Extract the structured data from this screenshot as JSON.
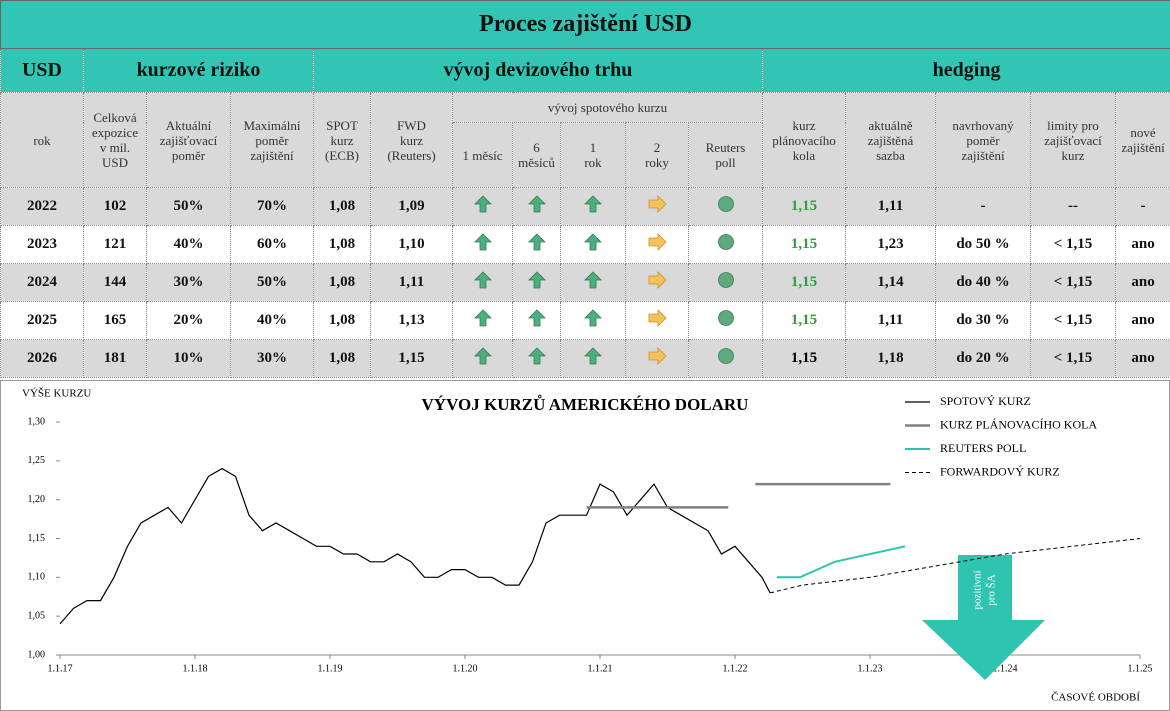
{
  "table": {
    "title": "Proces zajištění USD",
    "groups": [
      "USD",
      "kurzové riziko",
      "vývoj devizového trhu",
      "hedging"
    ],
    "spot_group": "vývoj spotového kurzu",
    "columns": [
      "rok",
      "Celková\nexpozice\nv mil.\nUSD",
      "Aktuální\nzajišťovací\npoměr",
      "Maximální\npoměr\nzajištění",
      "SPOT\nkurz\n(ECB)",
      "FWD\nkurz\n(Reuters)",
      "1 měsíc",
      "6\nměsíců",
      "1\nrok",
      "2\nroky",
      "Reuters\npoll",
      "kurz\nplánovacího\nkola",
      "aktuálně\nzajištěná\nsazba",
      "navrhovaný\npoměr\nzajištění",
      "limity pro\nzajišťovací\nkurz",
      "nové\nzajištění"
    ],
    "rows": [
      {
        "cells": [
          "2022",
          "102",
          "50%",
          "70%",
          "1,08",
          "1,09",
          "1,15",
          "1,11",
          "-",
          "--",
          "-"
        ],
        "plan_color": "#2e9e3c"
      },
      {
        "cells": [
          "2023",
          "121",
          "40%",
          "60%",
          "1,08",
          "1,10",
          "1,15",
          "1,23",
          "do 50 %",
          "< 1,15",
          "ano"
        ],
        "plan_color": "#2e9e3c"
      },
      {
        "cells": [
          "2024",
          "144",
          "30%",
          "50%",
          "1,08",
          "1,11",
          "1,15",
          "1,14",
          "do 40 %",
          "< 1,15",
          "ano"
        ],
        "plan_color": "#2e9e3c"
      },
      {
        "cells": [
          "2025",
          "165",
          "20%",
          "40%",
          "1,08",
          "1,13",
          "1,15",
          "1,11",
          "do 30 %",
          "< 1,15",
          "ano"
        ],
        "plan_color": "#2e9e3c"
      },
      {
        "cells": [
          "2026",
          "181",
          "10%",
          "30%",
          "1,08",
          "1,15",
          "1,15",
          "1,18",
          "do 20 %",
          "< 1,15",
          "ano"
        ],
        "plan_color": "#000000"
      }
    ]
  },
  "chart_data": {
    "type": "line",
    "title": "VÝVOJ KURZŮ AMERICKÉHO DOLARU",
    "y_label": "VÝŠE KURZU",
    "x_label": "ČASOVÉ OBDOBÍ",
    "xlim": [
      2017,
      2025
    ],
    "xticks": [
      {
        "value": 2017,
        "label": "1.1.17"
      },
      {
        "value": 2018,
        "label": "1.1.18"
      },
      {
        "value": 2019,
        "label": "1.1.19"
      },
      {
        "value": 2020,
        "label": "1.1.20"
      },
      {
        "value": 2021,
        "label": "1.1.21"
      },
      {
        "value": 2022,
        "label": "1.1.22"
      },
      {
        "value": 2023,
        "label": "1.1.23"
      },
      {
        "value": 2024,
        "label": "1.1.24"
      },
      {
        "value": 2025,
        "label": "1.1.25"
      }
    ],
    "ylim": [
      1.0,
      1.3
    ],
    "yticks": [
      {
        "value": 1.0,
        "label": "1,00"
      },
      {
        "value": 1.05,
        "label": "1,05"
      },
      {
        "value": 1.1,
        "label": "1,10"
      },
      {
        "value": 1.15,
        "label": "1,15"
      },
      {
        "value": 1.2,
        "label": "1,20"
      },
      {
        "value": 1.25,
        "label": "1,25"
      },
      {
        "value": 1.3,
        "label": "1,30"
      }
    ],
    "series": [
      {
        "name": "SPOTOVÝ KURZ",
        "color": "#000000",
        "width": 1.2,
        "dashed": false,
        "x": [
          2017.0,
          2017.1,
          2017.2,
          2017.3,
          2017.4,
          2017.5,
          2017.6,
          2017.7,
          2017.8,
          2017.9,
          2018.0,
          2018.1,
          2018.2,
          2018.3,
          2018.4,
          2018.5,
          2018.6,
          2018.7,
          2018.8,
          2018.9,
          2019.0,
          2019.1,
          2019.2,
          2019.3,
          2019.4,
          2019.5,
          2019.6,
          2019.7,
          2019.8,
          2019.9,
          2020.0,
          2020.1,
          2020.2,
          2020.3,
          2020.4,
          2020.5,
          2020.6,
          2020.7,
          2020.8,
          2020.9,
          2021.0,
          2021.1,
          2021.2,
          2021.3,
          2021.4,
          2021.5,
          2021.6,
          2021.7,
          2021.8,
          2021.9,
          2022.0,
          2022.1,
          2022.2,
          2022.26
        ],
        "values": [
          1.04,
          1.06,
          1.07,
          1.07,
          1.1,
          1.14,
          1.17,
          1.18,
          1.19,
          1.17,
          1.2,
          1.23,
          1.24,
          1.23,
          1.18,
          1.16,
          1.17,
          1.16,
          1.15,
          1.14,
          1.14,
          1.13,
          1.13,
          1.12,
          1.12,
          1.13,
          1.12,
          1.1,
          1.1,
          1.11,
          1.11,
          1.1,
          1.1,
          1.09,
          1.09,
          1.12,
          1.17,
          1.18,
          1.18,
          1.18,
          1.22,
          1.21,
          1.18,
          1.2,
          1.22,
          1.19,
          1.18,
          1.17,
          1.16,
          1.13,
          1.14,
          1.12,
          1.1,
          1.08
        ]
      },
      {
        "name": "KURZ PLÁNOVACÍHO KOLA",
        "color": "#808080",
        "width": 2.5,
        "dashed": false,
        "x": [
          2020.9,
          2021.95,
          2022.0,
          2022.15,
          2023.15
        ],
        "values": [
          1.19,
          1.19,
          null,
          1.22,
          1.22
        ]
      },
      {
        "name": "REUTERS POLL",
        "color": "#2ec4b0",
        "width": 2,
        "dashed": false,
        "x": [
          2022.31,
          2022.48,
          2022.74,
          2023.26
        ],
        "values": [
          1.1,
          1.1,
          1.12,
          1.14
        ]
      },
      {
        "name": "FORWARDOVÝ KURZ",
        "color": "#000000",
        "width": 1,
        "dashed": true,
        "x": [
          2022.26,
          2022.5,
          2023.0,
          2024.0,
          2025.0
        ],
        "values": [
          1.08,
          1.09,
          1.1,
          1.13,
          1.15
        ]
      }
    ],
    "annotation": {
      "lines": [
        "pozitivní",
        "pro ŠA"
      ],
      "color": "#2ec4b0"
    }
  }
}
